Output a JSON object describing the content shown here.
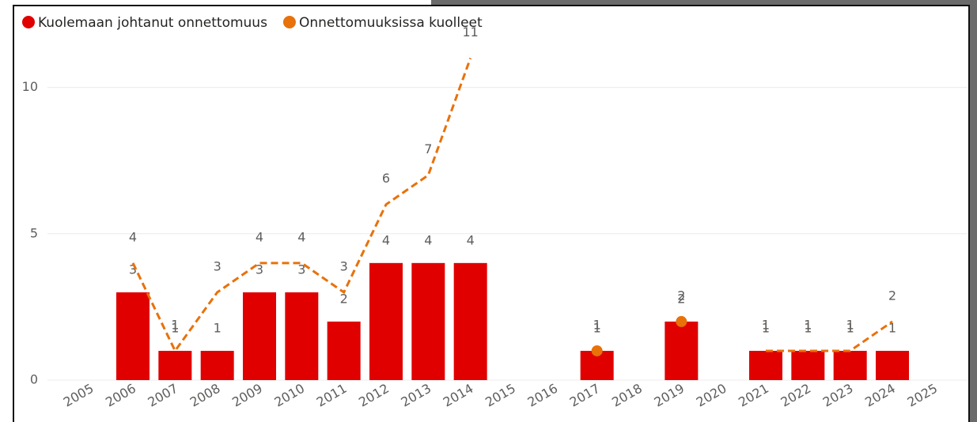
{
  "chart_data": {
    "type": "bar-line",
    "categories": [
      "2005",
      "2006",
      "2007",
      "2008",
      "2009",
      "2010",
      "2011",
      "2012",
      "2013",
      "2014",
      "2015",
      "2016",
      "2017",
      "2018",
      "2019",
      "2020",
      "2021",
      "2022",
      "2023",
      "2024",
      "2025"
    ],
    "series": [
      {
        "name": "Kuolemaan johtanut onnettomuus",
        "color": "#E00000",
        "type": "bar",
        "values": [
          null,
          3,
          1,
          1,
          3,
          3,
          2,
          4,
          4,
          4,
          null,
          null,
          1,
          null,
          2,
          null,
          1,
          1,
          1,
          1,
          null
        ]
      },
      {
        "name": "Onnettomuuksissa kuolleet",
        "color": "#E8710A",
        "type": "line",
        "values": [
          null,
          4,
          1,
          3,
          4,
          4,
          3,
          6,
          7,
          11,
          null,
          null,
          1,
          null,
          2,
          null,
          1,
          1,
          1,
          2,
          null
        ]
      }
    ],
    "ylim": [
      0,
      11.5
    ],
    "yticks": [
      0,
      5,
      10
    ],
    "grid": true,
    "legend": "top-left"
  }
}
